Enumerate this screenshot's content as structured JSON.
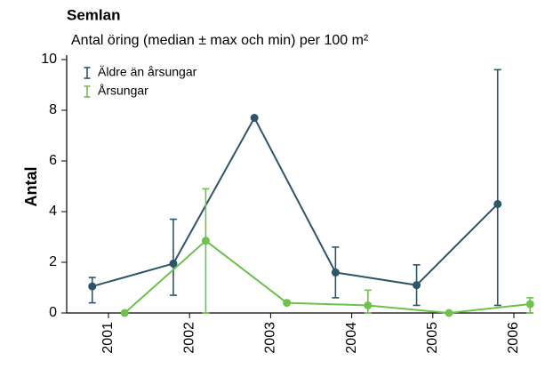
{
  "chart_data": {
    "type": "line",
    "title": "Semlan",
    "subtitle": "Antal öring (median ± max och min) per 100 m²",
    "y_label": "Antal",
    "categories": [
      "2001",
      "2002",
      "2003",
      "2004",
      "2005",
      "2006"
    ],
    "series": [
      {
        "name": "Äldre än årsungar",
        "color": "#2e5468",
        "values": [
          1.05,
          1.95,
          7.7,
          1.6,
          1.1,
          4.3
        ],
        "min": [
          0.4,
          0.7,
          null,
          0.6,
          0.3,
          0.3
        ],
        "max": [
          1.4,
          3.7,
          null,
          2.6,
          1.9,
          9.6
        ]
      },
      {
        "name": "Årsungar",
        "color": "#6cc24a",
        "values": [
          0,
          2.85,
          0.4,
          0.3,
          0,
          0.35
        ],
        "min": [
          null,
          0,
          null,
          0,
          null,
          0
        ],
        "max": [
          null,
          4.9,
          null,
          0.9,
          null,
          0.6
        ]
      }
    ],
    "ylim": [
      0,
      10
    ],
    "yticks": [
      0,
      2,
      4,
      6,
      8,
      10
    ],
    "legend": "upper left",
    "grid": false
  }
}
